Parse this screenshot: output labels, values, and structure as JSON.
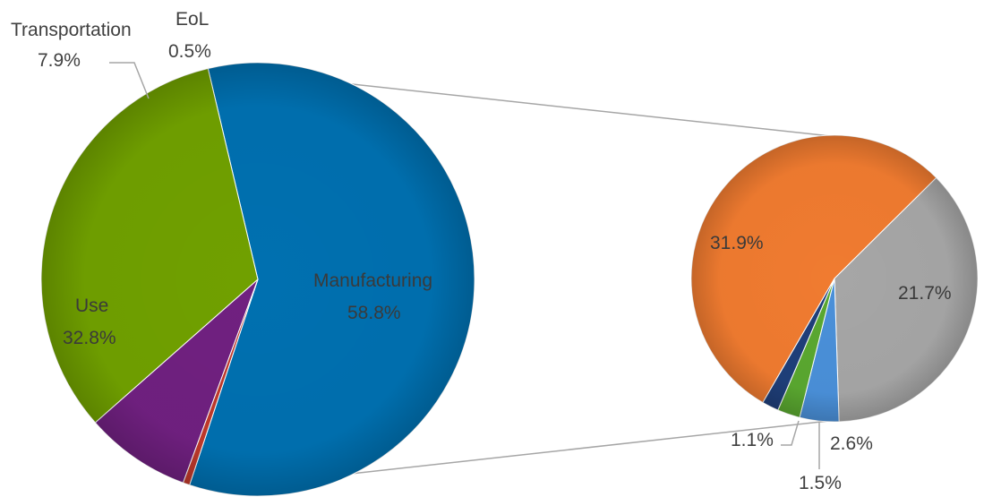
{
  "chart_data": {
    "type": "pie",
    "variant": "pie-of-pie",
    "title": "",
    "main": {
      "slices": [
        {
          "label": "Manufacturing",
          "value": 58.8,
          "value_label": "58.8%",
          "color": "#0070b0"
        },
        {
          "label": "Use",
          "value": 32.8,
          "value_label": "32.8%",
          "color": "#70a000"
        },
        {
          "label": "Transportation",
          "value": 7.9,
          "value_label": "7.9%",
          "color": "#702080"
        },
        {
          "label": "EoL",
          "value": 0.5,
          "value_label": "0.5%",
          "color": "#c0392b"
        }
      ]
    },
    "secondary": {
      "breakdown_of": "Manufacturing",
      "slices": [
        {
          "label": "",
          "value": 31.9,
          "value_label": "31.9%",
          "color": "#f07b30"
        },
        {
          "label": "",
          "value": 21.7,
          "value_label": "21.7%",
          "color": "#a6a6a6"
        },
        {
          "label": "",
          "value": 2.6,
          "value_label": "2.6%",
          "color": "#4a90d9"
        },
        {
          "label": "",
          "value": 1.5,
          "value_label": "1.5%",
          "color": "#5aa830"
        },
        {
          "label": "",
          "value": 1.1,
          "value_label": "1.1%",
          "color": "#1f3f7a"
        }
      ]
    },
    "legend": "none"
  }
}
